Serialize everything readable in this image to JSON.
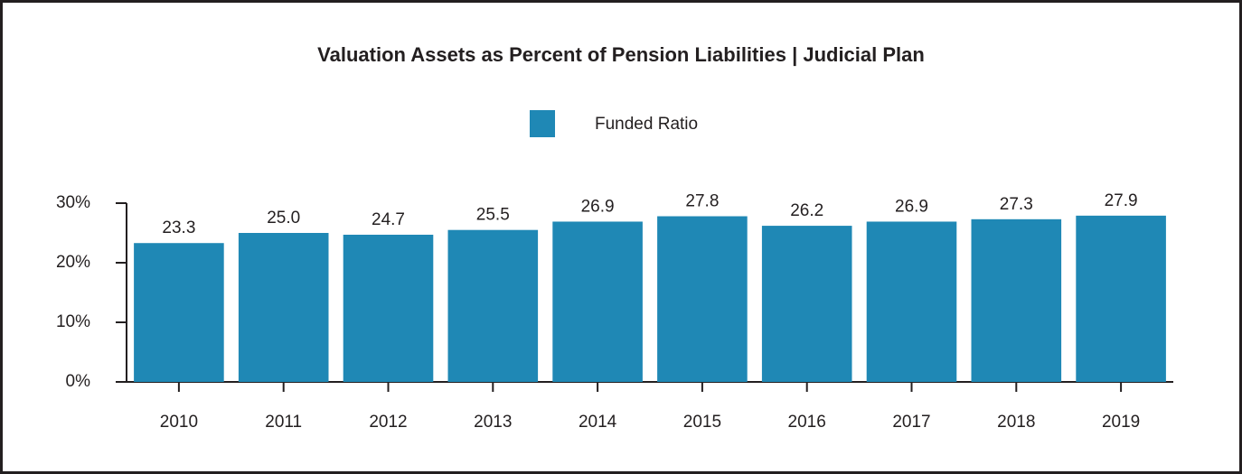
{
  "chart_data": {
    "type": "bar",
    "title": "Valuation Assets as Percent of Pension Liabilities | Judicial Plan",
    "categories": [
      "2010",
      "2011",
      "2012",
      "2013",
      "2014",
      "2015",
      "2016",
      "2017",
      "2018",
      "2019"
    ],
    "series": [
      {
        "name": "Funded Ratio",
        "color": "#1f88b5",
        "values": [
          23.3,
          25.0,
          24.7,
          25.5,
          26.9,
          27.8,
          26.2,
          26.9,
          27.3,
          27.9
        ],
        "value_labels": [
          "23.3",
          "25.0",
          "24.7",
          "25.5",
          "26.9",
          "27.8",
          "26.2",
          "26.9",
          "27.3",
          "27.9"
        ]
      }
    ],
    "ylim": [
      0,
      30
    ],
    "yticks": [
      {
        "value": 0,
        "label": "0%"
      },
      {
        "value": 10,
        "label": "10%"
      },
      {
        "value": 20,
        "label": "20%"
      },
      {
        "value": 30,
        "label": "30%"
      }
    ],
    "legend": "top"
  }
}
